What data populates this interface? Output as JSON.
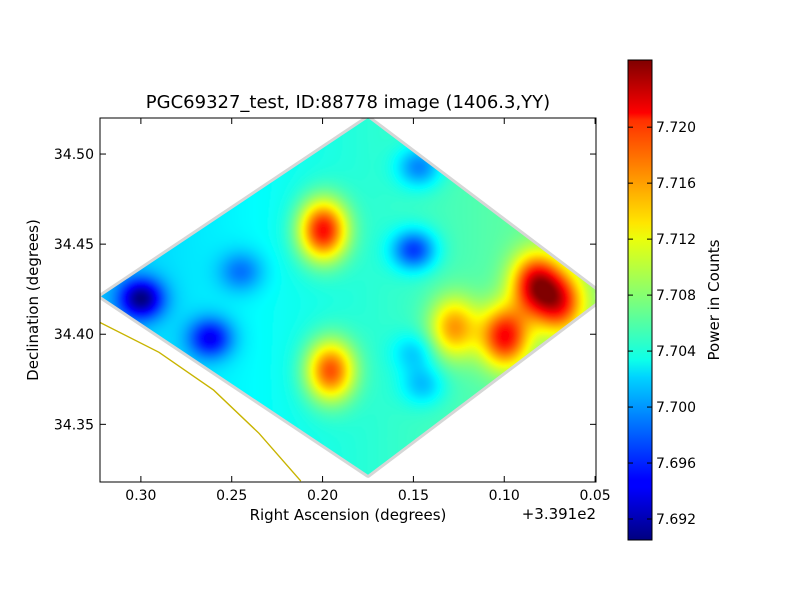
{
  "chart_data": {
    "type": "heatmap",
    "title": "PGC69327_test, ID:88778 image (1406.3,YY)",
    "xlabel": "Right Ascension (degrees)",
    "ylabel": "Declination (degrees)",
    "x_offset_label": "+3.391e2",
    "x_axis_inverted": true,
    "xlim": [
      0.3225,
      0.0495
    ],
    "ylim": [
      34.318,
      34.52
    ],
    "x_ticks": [
      {
        "value": 0.3,
        "label": "0.30"
      },
      {
        "value": 0.25,
        "label": "0.25"
      },
      {
        "value": 0.2,
        "label": "0.20"
      },
      {
        "value": 0.15,
        "label": "0.15"
      },
      {
        "value": 0.1,
        "label": "0.10"
      },
      {
        "value": 0.05,
        "label": "0.05"
      }
    ],
    "y_ticks": [
      {
        "value": 34.35,
        "label": "34.35"
      },
      {
        "value": 34.4,
        "label": "34.40"
      },
      {
        "value": 34.45,
        "label": "34.45"
      },
      {
        "value": 34.5,
        "label": "34.50"
      }
    ],
    "colorbar": {
      "label": "Power in Counts",
      "colormap": "jet",
      "range": [
        7.6905,
        7.7248
      ],
      "ticks": [
        {
          "value": 7.692,
          "label": "7.692"
        },
        {
          "value": 7.696,
          "label": "7.696"
        },
        {
          "value": 7.7,
          "label": "7.700"
        },
        {
          "value": 7.704,
          "label": "7.704"
        },
        {
          "value": 7.708,
          "label": "7.708"
        },
        {
          "value": 7.712,
          "label": "7.712"
        },
        {
          "value": 7.716,
          "label": "7.716"
        },
        {
          "value": 7.72,
          "label": "7.720"
        }
      ]
    },
    "field_outline_ra_dec": [
      [
        0.175,
        34.52
      ],
      [
        0.045,
        34.421
      ],
      [
        0.175,
        34.322
      ],
      [
        0.322,
        34.421
      ]
    ],
    "background_level": 7.7045,
    "features": [
      {
        "ra": 0.2,
        "dec": 34.458,
        "level": 7.7205,
        "kind": "peak"
      },
      {
        "ra": 0.196,
        "dec": 34.38,
        "level": 7.718,
        "kind": "peak"
      },
      {
        "ra": 0.083,
        "dec": 34.428,
        "level": 7.719,
        "kind": "peak"
      },
      {
        "ra": 0.1,
        "dec": 34.399,
        "level": 7.7185,
        "kind": "peak"
      },
      {
        "ra": 0.07,
        "dec": 34.418,
        "level": 7.7165,
        "kind": "peak"
      },
      {
        "ra": 0.128,
        "dec": 34.404,
        "level": 7.714,
        "kind": "peak"
      },
      {
        "ra": 0.3,
        "dec": 34.42,
        "level": 7.693,
        "kind": "trough"
      },
      {
        "ra": 0.262,
        "dec": 34.398,
        "level": 7.696,
        "kind": "trough"
      },
      {
        "ra": 0.15,
        "dec": 34.447,
        "level": 7.696,
        "kind": "trough"
      },
      {
        "ra": 0.147,
        "dec": 34.493,
        "level": 7.6985,
        "kind": "trough"
      },
      {
        "ra": 0.245,
        "dec": 34.435,
        "level": 7.7,
        "kind": "trough"
      },
      {
        "ra": 0.15,
        "dec": 34.39,
        "level": 7.701,
        "kind": "trough"
      },
      {
        "ra": 0.145,
        "dec": 34.372,
        "level": 7.7005,
        "kind": "trough"
      }
    ],
    "overlay_curve": {
      "color": "#c8b400",
      "points_ra_dec": [
        [
          0.3225,
          34.4065
        ],
        [
          0.29,
          34.39
        ],
        [
          0.26,
          34.369
        ],
        [
          0.235,
          34.345
        ],
        [
          0.212,
          34.3185
        ]
      ]
    }
  }
}
